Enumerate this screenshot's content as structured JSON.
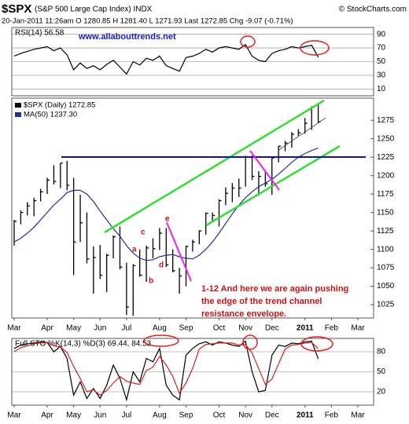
{
  "header": {
    "symbol": "$SPX",
    "subtitle": "(S&P 500 Large Cap Index) INDX",
    "copyright": "© StockCharts.com",
    "quote": "20-Jan-2011 11:26am  O 1280.85  H 1281.40  L 1271.93  Last 1272.85  Chg -9.07 (-0.71%)"
  },
  "annotations": {
    "website": "www.allabouttrends.net",
    "letters": [
      "a",
      "b",
      "c",
      "d",
      "e"
    ],
    "comment": [
      "1-12 And here we are again pushing",
      "the edge of the trend channel",
      "resistance envelope."
    ]
  },
  "chart_data": [
    {
      "type": "line",
      "title": "RSI(14) 56.58",
      "ylim": [
        0,
        100
      ],
      "yticks": [
        90,
        70,
        50,
        30,
        10
      ],
      "grid": true,
      "series": [
        {
          "color": "#000000",
          "values": [
            58,
            62,
            65,
            68,
            70,
            72,
            66,
            70,
            60,
            38,
            48,
            40,
            44,
            38,
            46,
            52,
            42,
            32,
            50,
            45,
            55,
            52,
            58,
            44,
            40,
            36,
            56,
            58,
            62,
            68,
            64,
            70,
            72,
            70,
            68,
            75,
            58,
            52,
            50,
            62,
            66,
            68,
            72,
            70,
            72,
            74,
            56.58,
            null,
            null,
            null,
            null,
            null,
            null
          ]
        }
      ]
    },
    {
      "type": "ohlc",
      "ylim": [
        1007,
        1305
      ],
      "yticks": [
        1025,
        1050,
        1075,
        1100,
        1125,
        1150,
        1175,
        1200,
        1225,
        1250,
        1275
      ],
      "grid": false,
      "categories": [
        "Mar",
        null,
        null,
        null,
        null,
        "Apr",
        null,
        null,
        null,
        "May",
        null,
        null,
        null,
        "Jun",
        null,
        null,
        null,
        "Jul",
        null,
        null,
        null,
        null,
        "Aug",
        null,
        null,
        null,
        "Sep",
        null,
        null,
        null,
        null,
        "Oct",
        null,
        null,
        null,
        "Nov",
        null,
        null,
        null,
        "Dec",
        null,
        null,
        null,
        null,
        "2011",
        null,
        null,
        null,
        "Feb",
        null,
        null,
        null,
        "Mar"
      ],
      "series": [
        {
          "name": "$SPX (Daily) 1272.85",
          "color": "#000000",
          "high": [
            1140,
            1153,
            1164,
            1170,
            1182,
            1197,
            1214,
            1217,
            1220,
            1197,
            1174,
            1150,
            1104,
            1106,
            1094,
            1119,
            1131,
            1082,
            1080,
            1100,
            1105,
            1115,
            1129,
            1129,
            1100,
            1075,
            1105,
            1113,
            1126,
            1150,
            1150,
            1168,
            1184,
            1190,
            1196,
            1227,
            1227,
            1206,
            1205,
            1225,
            1240,
            1247,
            1259,
            1263,
            1278,
            1294,
            1296,
            null,
            null,
            null,
            null,
            null,
            null
          ],
          "low": [
            1105,
            1134,
            1146,
            1145,
            1165,
            1175,
            1188,
            1183,
            1180,
            1065,
            1110,
            1081,
            1040,
            1060,
            1042,
            1088,
            1073,
            1011,
            1010,
            1063,
            1056,
            1088,
            1099,
            1076,
            1069,
            1040,
            1050,
            1097,
            1107,
            1120,
            1137,
            1131,
            1160,
            1164,
            1171,
            1185,
            1194,
            1173,
            1185,
            1174,
            1218,
            1233,
            1238,
            1254,
            1257,
            1262,
            1271,
            null,
            null,
            null,
            null,
            null,
            null
          ],
          "close": [
            1138,
            1150,
            1159,
            1166,
            1178,
            1194,
            1192,
            1217,
            1187,
            1110,
            1136,
            1087,
            1089,
            1065,
            1092,
            1117,
            1076,
            1022,
            1078,
            1065,
            1102,
            1101,
            1122,
            1079,
            1071,
            1064,
            1104,
            1110,
            1125,
            1149,
            1146,
            1166,
            1176,
            1183,
            1183,
            1225,
            1199,
            1199,
            1189,
            1224,
            1240,
            1244,
            1256,
            1258,
            1271,
            1293,
            1272.85,
            null,
            null,
            null,
            null,
            null,
            null
          ]
        },
        {
          "name": "MA(50) 1237.30",
          "color": "#1f2f9f",
          "values": [
            1110,
            1115,
            1122,
            1130,
            1140,
            1150,
            1160,
            1168,
            1177,
            1180,
            1180,
            1175,
            1165,
            1152,
            1140,
            1128,
            1118,
            1105,
            1095,
            1088,
            1085,
            1086,
            1090,
            1092,
            1093,
            1090,
            1088,
            1087,
            1092,
            1100,
            1110,
            1122,
            1135,
            1148,
            1160,
            1170,
            1178,
            1185,
            1190,
            1195,
            1202,
            1210,
            1218,
            1225,
            1230,
            1234,
            1237.3,
            null,
            null,
            null,
            null,
            null,
            null
          ]
        }
      ]
    },
    {
      "type": "line",
      "title": "Full STO %K(14,3) %D(3) 69.44, 84.53",
      "ylim": [
        0,
        100
      ],
      "yticks": [
        80,
        50,
        20
      ],
      "grid": true,
      "categories": [
        "Mar",
        null,
        null,
        null,
        null,
        "Apr",
        null,
        null,
        null,
        "May",
        null,
        null,
        null,
        "Jun",
        null,
        null,
        null,
        "Jul",
        null,
        null,
        null,
        null,
        "Aug",
        null,
        null,
        null,
        "Sep",
        null,
        null,
        null,
        null,
        "Oct",
        null,
        null,
        null,
        "Nov",
        null,
        null,
        null,
        "Dec",
        null,
        null,
        null,
        null,
        "2011",
        null,
        null,
        null,
        "Feb",
        null,
        null,
        null,
        "Mar"
      ],
      "series": [
        {
          "color": "#000000",
          "values": [
            85,
            90,
            92,
            93,
            95,
            94,
            80,
            88,
            70,
            15,
            35,
            10,
            25,
            10,
            30,
            60,
            40,
            8,
            50,
            35,
            70,
            65,
            85,
            30,
            15,
            8,
            75,
            85,
            92,
            95,
            90,
            95,
            93,
            90,
            88,
            96,
            50,
            20,
            22,
            75,
            90,
            88,
            93,
            92,
            95,
            96,
            69.44,
            null,
            null,
            null,
            null,
            null,
            null
          ]
        },
        {
          "color": "#d42020",
          "values": [
            80,
            86,
            89,
            92,
            93,
            94,
            89,
            87,
            79,
            58,
            40,
            20,
            23,
            15,
            22,
            33,
            43,
            36,
            33,
            31,
            52,
            57,
            73,
            60,
            43,
            18,
            33,
            55,
            84,
            91,
            92,
            93,
            93,
            93,
            90,
            91,
            78,
            55,
            31,
            39,
            62,
            84,
            90,
            91,
            93,
            94,
            84.53,
            null,
            null,
            null,
            null,
            null,
            null
          ]
        }
      ]
    }
  ]
}
